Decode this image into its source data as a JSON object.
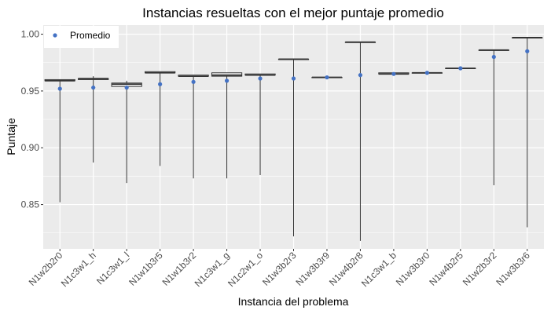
{
  "chart_data": {
    "type": "boxplot",
    "title": "Instancias resueltas con el mejor puntaje promedio",
    "xlabel": "Instancia del problema",
    "ylabel": "Puntaje",
    "ylim": [
      0.811,
      1.008
    ],
    "yticks": [
      0.85,
      0.9,
      0.95,
      1.0
    ],
    "ytick_labels": [
      "0.85",
      "0.90",
      "0.95",
      "1.00"
    ],
    "grid": true,
    "legend": {
      "position": "top-left",
      "entries": [
        "Promedio"
      ]
    },
    "categories": [
      "N1w2b2r0",
      "N1c3w1_h",
      "N1c3w1_l",
      "N1w1b3r5",
      "N1w1b3r2",
      "N1c3w1_g",
      "N1c2w1_o",
      "N1w3b2r3",
      "N1w3b3r9",
      "N1w4b2r8",
      "N1c3w1_b",
      "N1w3b3r0",
      "N1w4b2r5",
      "N1w2b3r2",
      "N1w3b3r6"
    ],
    "boxes": [
      {
        "min": 0.852,
        "q1": 0.959,
        "median": 0.959,
        "q3": 0.96,
        "max": 0.96,
        "mean": 0.952
      },
      {
        "min": 0.887,
        "q1": 0.96,
        "median": 0.961,
        "q3": 0.961,
        "max": 0.963,
        "mean": 0.953
      },
      {
        "min": 0.869,
        "q1": 0.954,
        "median": 0.956,
        "q3": 0.957,
        "max": 0.959,
        "mean": 0.953
      },
      {
        "min": 0.884,
        "q1": 0.966,
        "median": 0.966,
        "q3": 0.967,
        "max": 0.967,
        "mean": 0.956
      },
      {
        "min": 0.873,
        "q1": 0.963,
        "median": 0.963,
        "q3": 0.964,
        "max": 0.964,
        "mean": 0.958
      },
      {
        "min": 0.873,
        "q1": 0.963,
        "median": 0.964,
        "q3": 0.966,
        "max": 0.966,
        "mean": 0.959
      },
      {
        "min": 0.876,
        "q1": 0.964,
        "median": 0.964,
        "q3": 0.965,
        "max": 0.965,
        "mean": 0.961
      },
      {
        "min": 0.822,
        "q1": 0.978,
        "median": 0.978,
        "q3": 0.978,
        "max": 0.978,
        "mean": 0.961
      },
      {
        "min": 0.961,
        "q1": 0.962,
        "median": 0.962,
        "q3": 0.962,
        "max": 0.962,
        "mean": 0.962
      },
      {
        "min": 0.818,
        "q1": 0.993,
        "median": 0.993,
        "q3": 0.993,
        "max": 0.993,
        "mean": 0.964
      },
      {
        "min": 0.965,
        "q1": 0.965,
        "median": 0.965,
        "q3": 0.966,
        "max": 0.966,
        "mean": 0.965
      },
      {
        "min": 0.966,
        "q1": 0.966,
        "median": 0.966,
        "q3": 0.966,
        "max": 0.967,
        "mean": 0.966
      },
      {
        "min": 0.97,
        "q1": 0.97,
        "median": 0.97,
        "q3": 0.97,
        "max": 0.971,
        "mean": 0.97
      },
      {
        "min": 0.867,
        "q1": 0.986,
        "median": 0.986,
        "q3": 0.986,
        "max": 0.986,
        "mean": 0.98
      },
      {
        "min": 0.83,
        "q1": 0.997,
        "median": 0.997,
        "q3": 0.997,
        "max": 0.997,
        "mean": 0.985
      }
    ],
    "colors": {
      "panel": "#ebebeb",
      "grid": "#ffffff",
      "box_fill": "#ffffff",
      "box_stroke": "#333333",
      "mean_point": "#4472c4"
    }
  }
}
